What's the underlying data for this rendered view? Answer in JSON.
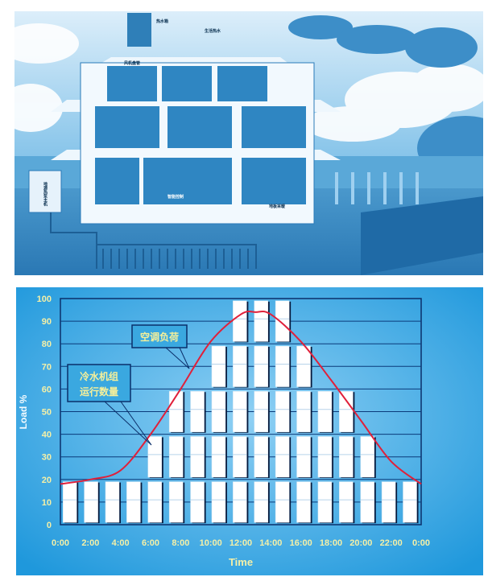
{
  "illustration": {
    "labels": {
      "hot_water_tank": "热水箱",
      "domestic_hot_water": "生活热水",
      "fan_coil": "风机盘管",
      "floor_heating": "地板采暖",
      "smart_control": "智能控制",
      "heat_pump_unit": "地源热泵主机"
    }
  },
  "chart_data": {
    "type": "bar+line",
    "xlabel": "Time",
    "ylabel": "Load %",
    "ylim": [
      0,
      100
    ],
    "yticks": [
      "0",
      "10",
      "20",
      "30",
      "40",
      "50",
      "60",
      "70",
      "80",
      "90",
      "100"
    ],
    "xticks": [
      "0:00",
      "2:00",
      "4:00",
      "6:00",
      "8:00",
      "10:00",
      "12:00",
      "14:00",
      "16:00",
      "18:00",
      "20:00",
      "22:00",
      "0:00"
    ],
    "grid": true,
    "bar_unit_percent": 20,
    "chillers_running": [
      1,
      1,
      1,
      1,
      2,
      3,
      3,
      4,
      5,
      5,
      5,
      4,
      3,
      3,
      2,
      1,
      1
    ],
    "load_curve": {
      "x_hours": [
        0,
        2,
        4,
        6,
        8,
        10,
        12,
        13,
        14,
        16,
        18,
        20,
        22,
        24
      ],
      "y": [
        18,
        20,
        24,
        40,
        60,
        81,
        93,
        94,
        93,
        81,
        64,
        46,
        28,
        18
      ]
    },
    "annotations": {
      "load": "空调负荷",
      "chillers_line1": "冷水机组",
      "chillers_line2": "运行数量"
    },
    "colors": {
      "background": "#3aa8e0",
      "bars": "#ffffff",
      "curve": "#e0203a",
      "grid": "#0a3a7a"
    }
  }
}
